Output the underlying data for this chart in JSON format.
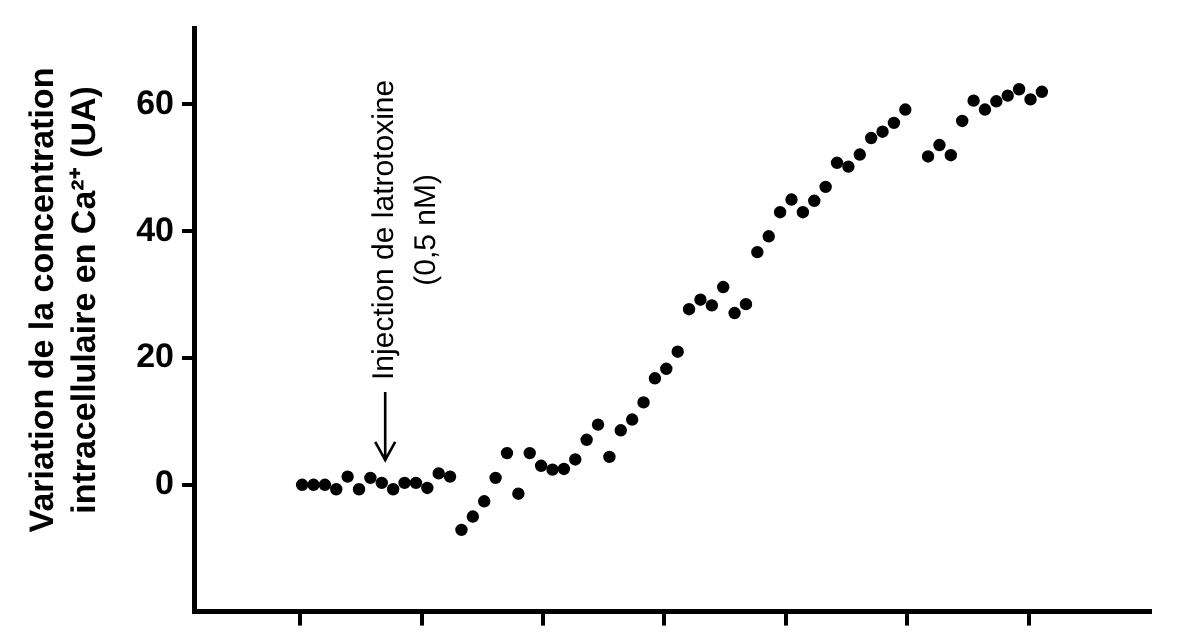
{
  "chart_data": {
    "type": "scatter",
    "ylabel": "Variation de la concentration intracellulaire en Ca²⁺ (UA)",
    "categories": [
      null,
      null,
      null,
      null,
      null,
      null,
      null,
      null,
      null,
      null,
      null,
      null,
      null,
      null,
      null,
      null,
      null,
      null,
      null,
      null,
      null,
      null,
      null,
      null,
      null,
      null,
      null,
      null,
      null,
      null,
      null,
      null,
      null,
      null,
      null,
      null,
      null,
      null,
      null,
      null,
      null,
      null,
      null,
      null,
      null,
      null,
      null,
      null,
      null,
      null,
      null,
      null,
      null,
      null,
      null,
      null,
      null,
      null,
      null,
      null,
      null,
      null,
      null,
      null,
      null,
      null,
      null,
      null,
      null,
      null,
      null,
      null,
      null,
      null,
      null,
      null,
      null,
      null,
      null,
      null,
      null,
      null,
      null,
      null
    ],
    "values": [
      null,
      null,
      null,
      null,
      null,
      null,
      null,
      null,
      null,
      0,
      0,
      0,
      -0.7,
      1.3,
      -0.7,
      1.1,
      0.3,
      -0.7,
      0.3,
      0.3,
      -0.5,
      1.8,
      1.3,
      -7.1,
      -5,
      -2.6,
      1.1,
      5,
      -1.4,
      5,
      3,
      2.4,
      2.5,
      4,
      7.1,
      9.5,
      4.4,
      8.6,
      10.3,
      13,
      16.8,
      18.3,
      21,
      27.7,
      29.2,
      28.3,
      31.2,
      27.1,
      28.5,
      36.7,
      39.2,
      43,
      45,
      43,
      44.8,
      47,
      50.8,
      50.2,
      52.1,
      54.7,
      55.7,
      57.1,
      59.2,
      null,
      51.8,
      53.6,
      52,
      57.4,
      60.6,
      59.2,
      60.5,
      61.4,
      62.4,
      60.8,
      62,
      null,
      null,
      null,
      null,
      null,
      null,
      null,
      null,
      null
    ],
    "color": "#000000",
    "marker": "circle",
    "ylim": [
      -20,
      72
    ],
    "yticks": [
      0,
      20,
      40,
      60
    ],
    "tick_labels": "y",
    "annotations": [
      "Injection de latrotoxine\n(0,5 nM)"
    ]
  }
}
